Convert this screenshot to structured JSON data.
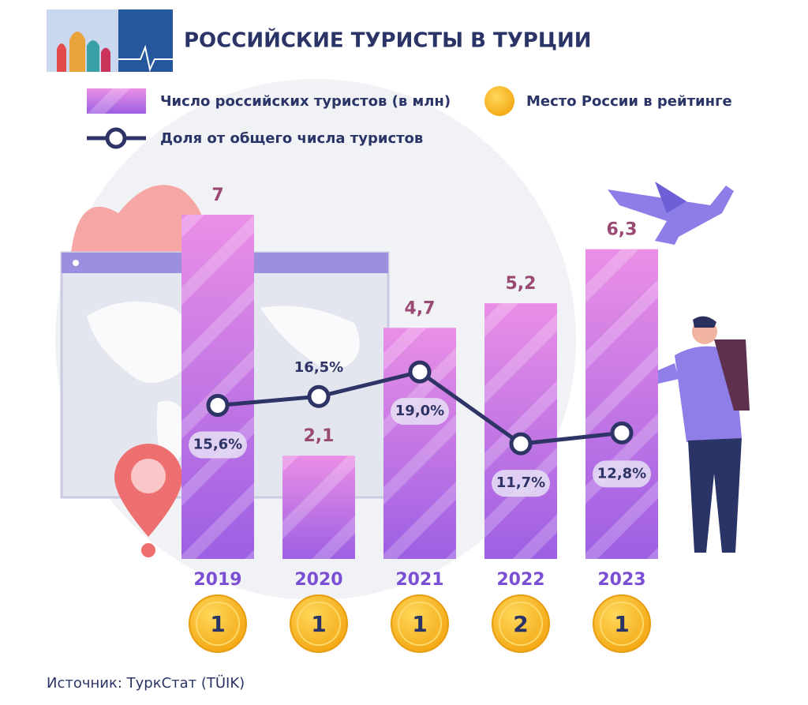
{
  "chart_data": {
    "type": "bar",
    "title": "РОССИЙСКИЕ ТУРИСТЫ В ТУРЦИИ",
    "categories": [
      "2019",
      "2020",
      "2021",
      "2022",
      "2023"
    ],
    "series": [
      {
        "name": "Число российских туристов (в млн)",
        "type": "bar",
        "color": "#b77ae8",
        "values": [
          7,
          2.1,
          4.7,
          5.2,
          6.3
        ],
        "value_labels": [
          "7",
          "2,1",
          "4,7",
          "5,2",
          "6,3"
        ]
      },
      {
        "name": "Доля от общего числа туристов",
        "type": "line",
        "color": "#2e3566",
        "values": [
          15.6,
          16.5,
          19.0,
          11.7,
          12.8
        ],
        "value_labels": [
          "15,6%",
          "16,5%",
          "19,0%",
          "11,7%",
          "12,8%"
        ]
      },
      {
        "name": "Место России в рейтинге",
        "type": "badge",
        "color": "#f6b623",
        "values": [
          1,
          1,
          1,
          2,
          1
        ]
      }
    ],
    "source": "Источник: ТуркСтат (TÜIK)"
  }
}
